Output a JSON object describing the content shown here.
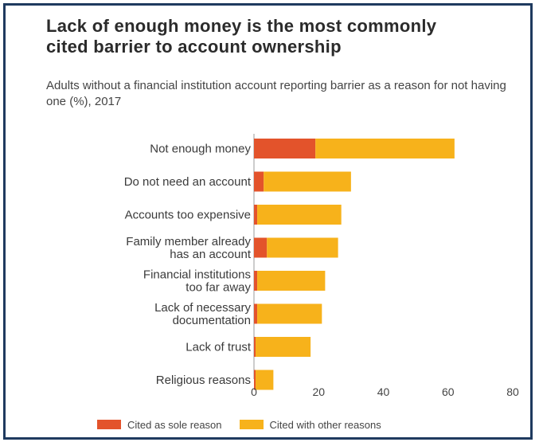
{
  "title": "Lack of enough money is the most commonly cited barrier to account ownership",
  "subtitle": "Adults without a financial institution account reporting barrier as a reason for not having one (%), 2017",
  "colors": {
    "sole": "#e3532b",
    "other": "#f7b21b",
    "axis": "#999999",
    "frame": "#1f3a5f"
  },
  "chart_data": {
    "type": "bar",
    "orientation": "horizontal",
    "stacked": true,
    "categories": [
      [
        "Not enough money"
      ],
      [
        "Do not need an account"
      ],
      [
        "Accounts too expensive"
      ],
      [
        "Family member already",
        "has an account"
      ],
      [
        "Financial institutions",
        "too far away"
      ],
      [
        "Lack of necessary",
        "documentation"
      ],
      [
        "Lack of trust"
      ],
      [
        "Religious reasons"
      ]
    ],
    "series": [
      {
        "name": "Cited as sole reason",
        "values": [
          19,
          3,
          1,
          4,
          1,
          1,
          0.5,
          0.5
        ]
      },
      {
        "name": "Cited with other reasons",
        "values": [
          43,
          27,
          26,
          22,
          21,
          20,
          17,
          5.5
        ]
      }
    ],
    "xlim": [
      0,
      80
    ],
    "xticks": [
      0,
      20,
      40,
      60,
      80
    ],
    "legend": "bottom",
    "grid": false
  }
}
